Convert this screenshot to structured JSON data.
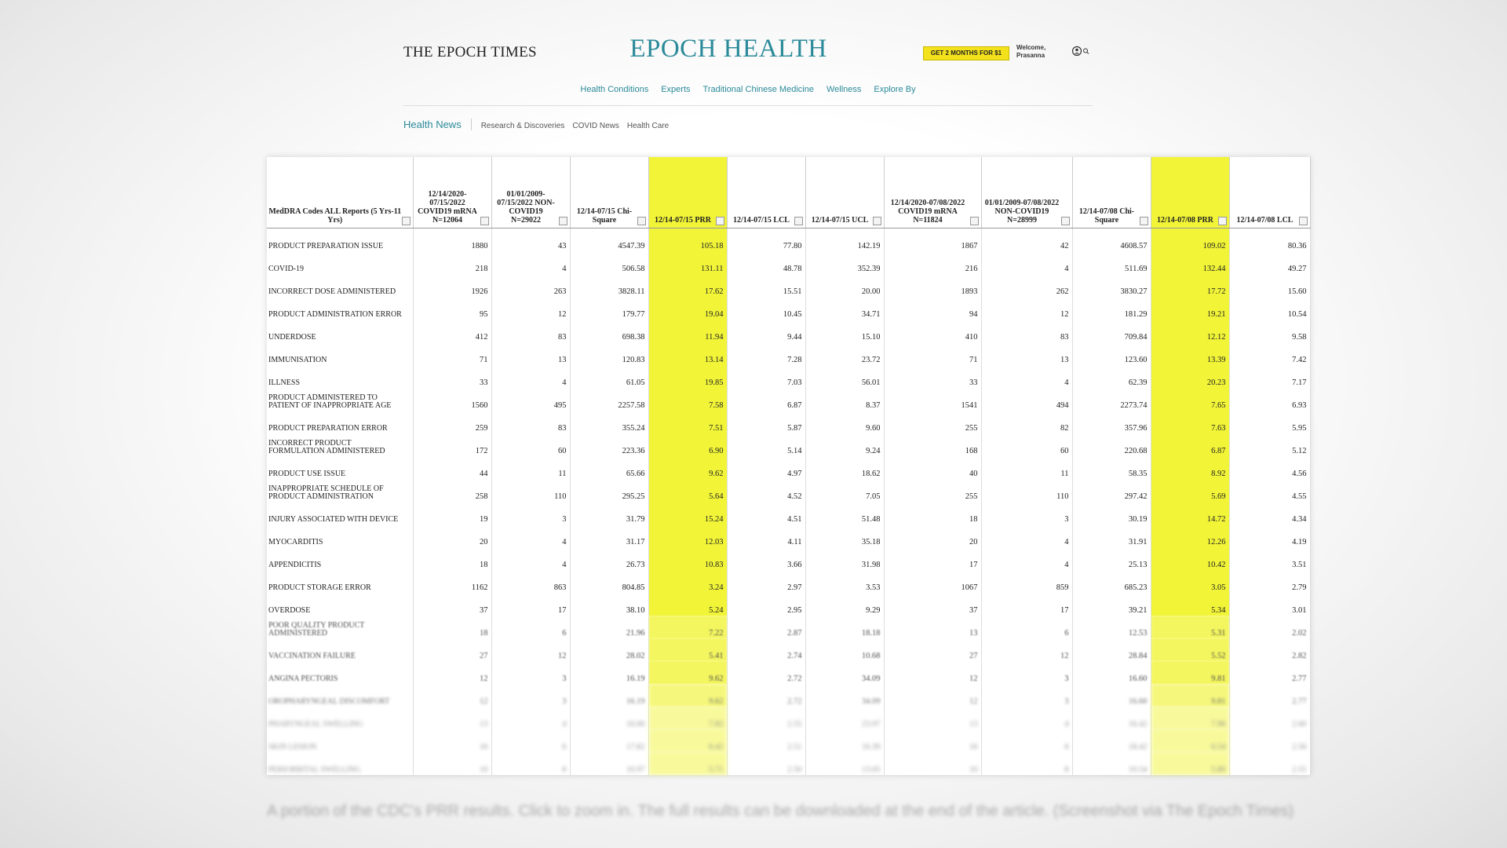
{
  "header": {
    "brand": "THE EPOCH TIMES",
    "section": "EPOCH HEALTH",
    "promo": "GET 2 MONTHS FOR $1",
    "welcome": "Welcome, Prasanna"
  },
  "nav": [
    "Health Conditions",
    "Experts",
    "Traditional Chinese Medicine",
    "Wellness",
    "Explore By"
  ],
  "subnav": [
    "Health News",
    "Research & Discoveries",
    "COVID News",
    "Health Care"
  ],
  "table": {
    "columns": [
      "MedDRA Codes ALL Reports (5 Yrs-11 Yrs)",
      "12/14/2020-07/15/2022 COVID19 mRNA N=12064",
      "01/01/2009-07/15/2022 NON-COVID19 N=29022",
      "12/14-07/15 Chi-Square",
      "12/14-07/15 PRR",
      "12/14-07/15 LCL",
      "12/14-07/15 UCL",
      "12/14/2020-07/08/2022 COVID19 mRNA N=11824",
      "01/01/2009-07/08/2022 NON-COVID19 N=28999",
      "12/14-07/08 Chi-Square",
      "12/14-07/08 PRR",
      "12/14-07/08 LCL"
    ],
    "rows": [
      [
        "PRODUCT PREPARATION ISSUE",
        "1880",
        "43",
        "4547.39",
        "105.18",
        "77.80",
        "142.19",
        "1867",
        "42",
        "4608.57",
        "109.02",
        "80.36"
      ],
      [
        "COVID-19",
        "218",
        "4",
        "506.58",
        "131.11",
        "48.78",
        "352.39",
        "216",
        "4",
        "511.69",
        "132.44",
        "49.27"
      ],
      [
        "INCORRECT DOSE ADMINISTERED",
        "1926",
        "263",
        "3828.11",
        "17.62",
        "15.51",
        "20.00",
        "1893",
        "262",
        "3830.27",
        "17.72",
        "15.60"
      ],
      [
        "PRODUCT ADMINISTRATION ERROR",
        "95",
        "12",
        "179.77",
        "19.04",
        "10.45",
        "34.71",
        "94",
        "12",
        "181.29",
        "19.21",
        "10.54"
      ],
      [
        "UNDERDOSE",
        "412",
        "83",
        "698.38",
        "11.94",
        "9.44",
        "15.10",
        "410",
        "83",
        "709.84",
        "12.12",
        "9.58"
      ],
      [
        "IMMUNISATION",
        "71",
        "13",
        "120.83",
        "13.14",
        "7.28",
        "23.72",
        "71",
        "13",
        "123.60",
        "13.39",
        "7.42"
      ],
      [
        "ILLNESS",
        "33",
        "4",
        "61.05",
        "19.85",
        "7.03",
        "56.01",
        "33",
        "4",
        "62.39",
        "20.23",
        "7.17"
      ],
      [
        "PRODUCT ADMINISTERED TO PATIENT OF INAPPROPRIATE AGE",
        "1560",
        "495",
        "2257.58",
        "7.58",
        "6.87",
        "8.37",
        "1541",
        "494",
        "2273.74",
        "7.65",
        "6.93"
      ],
      [
        "PRODUCT PREPARATION ERROR",
        "259",
        "83",
        "355.24",
        "7.51",
        "5.87",
        "9.60",
        "255",
        "82",
        "357.96",
        "7.63",
        "5.95"
      ],
      [
        "INCORRECT PRODUCT FORMULATION ADMINISTERED",
        "172",
        "60",
        "223.36",
        "6.90",
        "5.14",
        "9.24",
        "168",
        "60",
        "220.68",
        "6.87",
        "5.12"
      ],
      [
        "PRODUCT USE ISSUE",
        "44",
        "11",
        "65.66",
        "9.62",
        "4.97",
        "18.62",
        "40",
        "11",
        "58.35",
        "8.92",
        "4.56"
      ],
      [
        "INAPPROPRIATE SCHEDULE OF PRODUCT ADMINISTRATION",
        "258",
        "110",
        "295.25",
        "5.64",
        "4.52",
        "7.05",
        "255",
        "110",
        "297.42",
        "5.69",
        "4.55"
      ],
      [
        "INJURY ASSOCIATED WITH DEVICE",
        "19",
        "3",
        "31.79",
        "15.24",
        "4.51",
        "51.48",
        "18",
        "3",
        "30.19",
        "14.72",
        "4.34"
      ],
      [
        "MYOCARDITIS",
        "20",
        "4",
        "31.17",
        "12.03",
        "4.11",
        "35.18",
        "20",
        "4",
        "31.91",
        "12.26",
        "4.19"
      ],
      [
        "APPENDICITIS",
        "18",
        "4",
        "26.73",
        "10.83",
        "3.66",
        "31.98",
        "17",
        "4",
        "25.13",
        "10.42",
        "3.51"
      ],
      [
        "PRODUCT STORAGE ERROR",
        "1162",
        "863",
        "804.85",
        "3.24",
        "2.97",
        "3.53",
        "1067",
        "859",
        "685.23",
        "3.05",
        "2.79"
      ],
      [
        "OVERDOSE",
        "37",
        "17",
        "38.10",
        "5.24",
        "2.95",
        "9.29",
        "37",
        "17",
        "39.21",
        "5.34",
        "3.01"
      ],
      [
        "POOR QUALITY PRODUCT ADMINISTERED",
        "18",
        "6",
        "21.96",
        "7.22",
        "2.87",
        "18.18",
        "13",
        "6",
        "12.53",
        "5.31",
        "2.02"
      ],
      [
        "VACCINATION FAILURE",
        "27",
        "12",
        "28.02",
        "5.41",
        "2.74",
        "10.68",
        "27",
        "12",
        "28.84",
        "5.52",
        "2.82"
      ],
      [
        "ANGINA PECTORIS",
        "12",
        "3",
        "16.19",
        "9.62",
        "2.72",
        "34.09",
        "12",
        "3",
        "16.60",
        "9.81",
        "2.77"
      ],
      [
        "OROPHARYNGEAL DISCOMFORT",
        "12",
        "3",
        "16.19",
        "9.62",
        "2.72",
        "34.09",
        "12",
        "3",
        "16.60",
        "9.81",
        "2.77"
      ],
      [
        "PHARYNGEAL SWELLING",
        "13",
        "4",
        "16.00",
        "7.82",
        "2.55",
        "23.97",
        "13",
        "4",
        "16.42",
        "7.96",
        "2.60"
      ],
      [
        "SKIN LESION",
        "16",
        "6",
        "17.82",
        "6.42",
        "2.51",
        "16.39",
        "16",
        "6",
        "18.42",
        "6.54",
        "2.56"
      ],
      [
        "PERIORBITAL SWELLING",
        "10",
        "8",
        "10.97",
        "5.71",
        "2.50",
        "13.05",
        "10",
        "8",
        "10.54",
        "5.80",
        "2.55"
      ]
    ]
  },
  "caption": "A portion of the CDC's PRR results. Click to zoom in. The full results can be downloaded at the end of the article. (Screenshot via The Epoch Times)"
}
